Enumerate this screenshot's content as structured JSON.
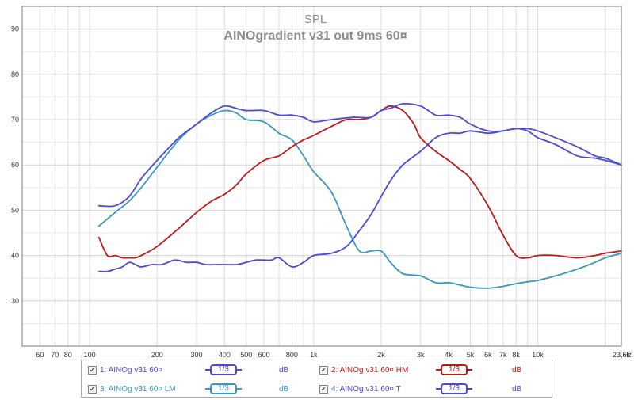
{
  "chart_data": {
    "type": "line",
    "title": "SPL",
    "subtitle": "AINOgradient v31 out 9ms 60¤",
    "xscale": "log",
    "xlim": [
      50,
      23600
    ],
    "ylim": [
      20,
      95
    ],
    "x_ticks": [
      {
        "v": 60,
        "label": "60"
      },
      {
        "v": 70,
        "label": "70"
      },
      {
        "v": 80,
        "label": "80"
      },
      {
        "v": 100,
        "label": "100"
      },
      {
        "v": 200,
        "label": "200"
      },
      {
        "v": 300,
        "label": "300"
      },
      {
        "v": 400,
        "label": "400"
      },
      {
        "v": 500,
        "label": "500"
      },
      {
        "v": 600,
        "label": "600"
      },
      {
        "v": 800,
        "label": "800"
      },
      {
        "v": 1000,
        "label": "1k"
      },
      {
        "v": 2000,
        "label": "2k"
      },
      {
        "v": 3000,
        "label": "3k"
      },
      {
        "v": 4000,
        "label": "4k"
      },
      {
        "v": 5000,
        "label": "5k"
      },
      {
        "v": 6000,
        "label": "6k"
      },
      {
        "v": 7000,
        "label": "7k"
      },
      {
        "v": 8000,
        "label": "8k"
      },
      {
        "v": 10000,
        "label": "10k"
      },
      {
        "v": 23600,
        "label": "23,6k"
      }
    ],
    "x_unit": "Hz",
    "y_ticks": [
      30,
      40,
      50,
      60,
      70,
      80,
      90
    ],
    "grid": true,
    "series": [
      {
        "name": "1: AINOg v31 60¤",
        "color": "#4a4ad2",
        "x": [
          110,
          130,
          150,
          170,
          200,
          250,
          300,
          350,
          400,
          450,
          500,
          600,
          700,
          800,
          900,
          1000,
          1200,
          1500,
          1800,
          2000,
          2200,
          2500,
          3000,
          3500,
          4000,
          4500,
          5000,
          6000,
          7000,
          8000,
          9000,
          10000,
          12000,
          15000,
          18000,
          20000,
          23600
        ],
        "y": [
          51,
          51,
          53,
          57,
          61,
          66,
          69,
          71.5,
          73,
          72.5,
          72,
          72,
          71,
          71,
          70.5,
          69.5,
          70,
          70.5,
          70.5,
          72,
          72.5,
          73.5,
          73,
          71,
          71,
          70.5,
          69,
          67.5,
          67.5,
          68,
          67.5,
          66,
          64.5,
          62,
          61.5,
          61,
          60
        ]
      },
      {
        "name": "2: AINOg v31 60¤ HM",
        "color": "#c01818",
        "x": [
          110,
          120,
          130,
          140,
          150,
          160,
          170,
          200,
          250,
          300,
          350,
          400,
          450,
          500,
          600,
          700,
          800,
          900,
          1000,
          1200,
          1400,
          1600,
          1800,
          2000,
          2200,
          2500,
          2800,
          3000,
          3500,
          4000,
          4500,
          5000,
          6000,
          7000,
          8000,
          9000,
          10000,
          12000,
          15000,
          18000,
          20000,
          23600
        ],
        "y": [
          44,
          40,
          40,
          39.5,
          39.5,
          39.5,
          40,
          42,
          46,
          49.5,
          52,
          53.5,
          55.5,
          58,
          61,
          62,
          64,
          65.5,
          66.5,
          68.5,
          70,
          70,
          70.5,
          72,
          73,
          72,
          69,
          66,
          63,
          61,
          59,
          57,
          51,
          44.5,
          40,
          39.5,
          40,
          40,
          39.5,
          40,
          40.5,
          41
        ]
      },
      {
        "name": "3: AINOg v31 60¤ LM",
        "color": "#3a96be",
        "x": [
          110,
          130,
          150,
          170,
          200,
          250,
          300,
          350,
          400,
          450,
          500,
          600,
          700,
          800,
          900,
          1000,
          1200,
          1400,
          1600,
          1800,
          2000,
          2200,
          2500,
          3000,
          3500,
          4000,
          4500,
          5000,
          6000,
          7000,
          8000,
          9000,
          10000,
          12000,
          15000,
          18000,
          20000,
          23600
        ],
        "y": [
          46.5,
          49.5,
          52,
          55,
          59.5,
          65.5,
          69,
          71,
          72,
          71.5,
          70,
          69.5,
          67,
          65.5,
          62,
          58.5,
          54,
          46.5,
          41,
          41,
          41,
          38.5,
          36,
          35.5,
          34,
          34,
          33.5,
          33,
          32.8,
          33.2,
          33.8,
          34.2,
          34.5,
          35.5,
          37,
          38.5,
          39.5,
          40.5
        ]
      },
      {
        "name": "4: AINOg v31 60¤ T",
        "color": "#4a4ad2",
        "x": [
          110,
          120,
          130,
          140,
          150,
          160,
          170,
          190,
          210,
          240,
          270,
          300,
          330,
          370,
          400,
          450,
          500,
          550,
          600,
          650,
          700,
          800,
          900,
          1000,
          1200,
          1400,
          1600,
          1800,
          2000,
          2200,
          2500,
          3000,
          3500,
          4000,
          4500,
          5000,
          6000,
          7000,
          8000,
          9000,
          10000,
          12000,
          15000,
          18000,
          20000,
          23600
        ],
        "y": [
          36.5,
          36.5,
          37,
          37.5,
          38.5,
          38,
          37.5,
          38,
          38,
          39,
          38.5,
          38.5,
          38,
          38,
          38,
          38,
          38.5,
          39,
          39,
          39,
          39.5,
          37.5,
          38.5,
          40,
          40.5,
          42,
          45.5,
          49,
          53,
          56.5,
          60,
          63,
          66,
          67,
          67,
          67.5,
          67,
          67.5,
          68,
          68,
          67.5,
          66,
          64,
          62,
          61.5,
          60
        ]
      }
    ]
  },
  "legend": [
    {
      "label": "1: AINOg v31 60¤",
      "smoothing": "1/3",
      "unit": "dB",
      "color": "#4a4ad2"
    },
    {
      "label": "2: AINOg v31 60¤ HM",
      "smoothing": "1/3",
      "unit": "dB",
      "color": "#c01818"
    },
    {
      "label": "3: AINOg v31 60¤ LM",
      "smoothing": "1/3",
      "unit": "dB",
      "color": "#3a96be"
    },
    {
      "label": "4: AINOg v31 60¤ T",
      "smoothing": "1/3",
      "unit": "dB",
      "color": "#4a4ad2"
    }
  ]
}
